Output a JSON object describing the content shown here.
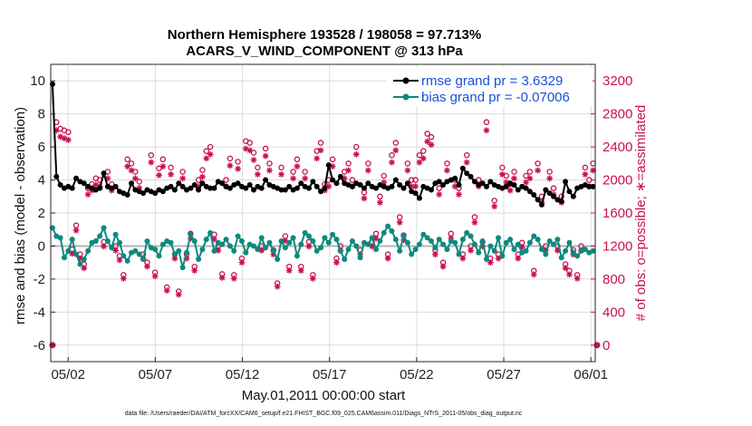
{
  "chart_data": {
    "type": "line",
    "title_line1": "Northern Hemisphere 193528 / 198058 = 97.713%",
    "title_line2": "ACARS_V_WIND_COMPONENT @ 313 hPa",
    "xlabel": "May.01,2011 00:00:00 start",
    "ylabel": "rmse and bias (model - observation)",
    "ylabel_right": "# of obs: o=possible; ∗=assimilated",
    "footnote": "data file: /Users/raeder/DAI/ATM_forcXX/CAM6_setup/f.e21.FHIST_BGC.f09_025.CAM6assim.011/Diags_NTrS_2011-05/obs_diag_output.nc",
    "xlim": [
      0,
      31.25
    ],
    "ylim": [
      -7,
      11
    ],
    "ylim_right": [
      -200,
      3400
    ],
    "x_ticks": [
      {
        "value": 1,
        "label": "05/02"
      },
      {
        "value": 6,
        "label": "05/07"
      },
      {
        "value": 11,
        "label": "05/12"
      },
      {
        "value": 16,
        "label": "05/17"
      },
      {
        "value": 21,
        "label": "05/22"
      },
      {
        "value": 26,
        "label": "05/27"
      },
      {
        "value": 31,
        "label": "06/01"
      }
    ],
    "y_ticks": [
      -6,
      -4,
      -2,
      0,
      2,
      4,
      6,
      8,
      10
    ],
    "y_ticks_right": [
      0,
      400,
      800,
      1200,
      1600,
      2000,
      2400,
      2800,
      3200
    ],
    "legend": [
      {
        "label": "rmse grand pr = 3.6329",
        "color": "#000000"
      },
      {
        "label": "bias grand pr = -0.07006",
        "color": "#0b8a7e"
      }
    ],
    "colors": {
      "rmse": "#000000",
      "bias": "#0b8a7e",
      "obs": "#c8104f",
      "zero_line": "#b5b5b5"
    },
    "series": [
      {
        "name": "rmse",
        "values": [
          9.8,
          4.2,
          3.7,
          3.5,
          3.6,
          3.5,
          4.1,
          3.9,
          3.8,
          3.6,
          3.5,
          3.4,
          3.5,
          4.4,
          3.6,
          3.5,
          3.6,
          3.3,
          3.2,
          3.1,
          3.8,
          3.4,
          3.3,
          3.2,
          3.4,
          3.3,
          3.2,
          3.4,
          3.3,
          3.5,
          3.6,
          3.4,
          3.8,
          3.6,
          3.4,
          3.5,
          3.7,
          3.4,
          3.8,
          3.6,
          3.5,
          3.5,
          3.9,
          3.8,
          3.6,
          3.5,
          3.7,
          3.8,
          3.6,
          3.5,
          3.7,
          3.4,
          3.6,
          3.5,
          4.0,
          3.7,
          3.6,
          3.5,
          3.4,
          3.4,
          3.6,
          3.4,
          3.5,
          3.8,
          3.6,
          3.5,
          3.9,
          3.6,
          3.3,
          3.5,
          4.9,
          4.0,
          3.8,
          4.2,
          3.8,
          3.7,
          3.6,
          3.8,
          3.7,
          3.5,
          3.8,
          3.6,
          3.5,
          3.7,
          3.6,
          3.5,
          3.6,
          4.0,
          3.7,
          3.5,
          3.8,
          3.3,
          3.2,
          2.9,
          3.6,
          3.5,
          3.4,
          3.8,
          3.9,
          3.7,
          3.9,
          4.0,
          4.1,
          3.7,
          4.7,
          4.4,
          4.2,
          3.9,
          3.7,
          3.8,
          3.6,
          3.9,
          3.7,
          3.6,
          3.5,
          3.6,
          3.8,
          3.7,
          3.4,
          3.6,
          3.5,
          3.3,
          3.1,
          2.8,
          2.5,
          3.4,
          3.2,
          3.0,
          2.8,
          2.7,
          3.9,
          3.3,
          3.0,
          3.5,
          3.6,
          3.7,
          3.6,
          3.6
        ]
      },
      {
        "name": "bias",
        "values": [
          1.1,
          0.6,
          0.5,
          -0.7,
          -0.3,
          0.4,
          -0.5,
          -1.1,
          -0.8,
          -0.3,
          0.2,
          0.3,
          0.6,
          1.1,
          0.3,
          -0.1,
          0.7,
          0.2,
          -0.6,
          -0.9,
          -0.4,
          -0.3,
          -0.5,
          -0.8,
          0.3,
          -0.1,
          -0.2,
          -0.6,
          0.1,
          0.3,
          0.2,
          -0.5,
          -0.3,
          -1.3,
          -0.4,
          0.7,
          0.3,
          -0.8,
          -0.2,
          0.4,
          0.8,
          -0.3,
          0.2,
          0.1,
          0.4,
          0.0,
          -0.3,
          0.6,
          0.3,
          -0.4,
          0.1,
          0.0,
          -0.2,
          0.5,
          -0.1,
          0.2,
          -0.3,
          -0.8,
          0.3,
          -0.1,
          0.2,
          0.5,
          -0.6,
          0.1,
          0.8,
          0.6,
          0.3,
          -0.3,
          -0.1,
          0.5,
          0.2,
          0.7,
          0.4,
          -0.3,
          -0.8,
          -0.2,
          0.3,
          0.0,
          -0.7,
          0.2,
          0.1,
          0.5,
          -0.2,
          0.3,
          0.8,
          1.2,
          0.9,
          0.4,
          -0.3,
          0.6,
          0.2,
          -0.5,
          -0.2,
          0.1,
          0.7,
          0.5,
          0.3,
          -0.1,
          0.4,
          0.1,
          -0.2,
          0.3,
          0.2,
          -0.5,
          0.4,
          0.8,
          0.6,
          0.1,
          -0.4,
          0.3,
          -0.8,
          0.0,
          -0.3,
          0.5,
          -0.6,
          0.2,
          0.4,
          -0.2,
          0.1,
          -0.4,
          -0.3,
          0.2,
          0.6,
          0.4,
          -0.2,
          -0.5,
          0.3,
          0.1,
          0.4,
          -0.7,
          -0.3,
          0.2,
          -0.4,
          -0.6,
          -0.3,
          -0.2,
          -0.4,
          -0.3
        ]
      }
    ],
    "obs_possible": [
      0,
      2700,
      2620,
      2600,
      2580,
      1160,
      1450,
      1100,
      980,
      1900,
      1950,
      2020,
      2000,
      1250,
      2100,
      1950,
      1200,
      1080,
      850,
      2250,
      2200,
      2100,
      1980,
      1100,
      1000,
      2300,
      880,
      2140,
      2250,
      700,
      2150,
      1100,
      650,
      2100,
      1100,
      1350,
      950,
      2000,
      2120,
      2350,
      2400,
      1340,
      1200,
      860,
      2000,
      2260,
      850,
      2220,
      1050,
      2470,
      2450,
      2330,
      2150,
      1200,
      2380,
      2200,
      1150,
      750,
      2150,
      1320,
      950,
      2100,
      2250,
      950,
      2100,
      1250,
      850,
      2350,
      2450,
      1950,
      2000,
      2250,
      1050,
      1200,
      2100,
      2200,
      2000,
      2400,
      1150,
      1850,
      2200,
      1250,
      1350,
      1800,
      2050,
      1100,
      2300,
      2450,
      1550,
      1330,
      2200,
      2000,
      2000,
      2300,
      2350,
      2560,
      2520,
      1150,
      1900,
      1000,
      2200,
      1350,
      2000,
      1900,
      1100,
      2300,
      1200,
      1550,
      2000,
      1250,
      2700,
      1050,
      1750,
      1100,
      2150,
      2050,
      1950,
      2100,
      1100,
      1240,
      2050,
      2100,
      900,
      2200,
      1800,
      1200,
      2100,
      1900,
      1200,
      1800,
      980,
      900,
      1150,
      850,
      1200,
      2150,
      2000,
      2200,
      0
    ]
  }
}
